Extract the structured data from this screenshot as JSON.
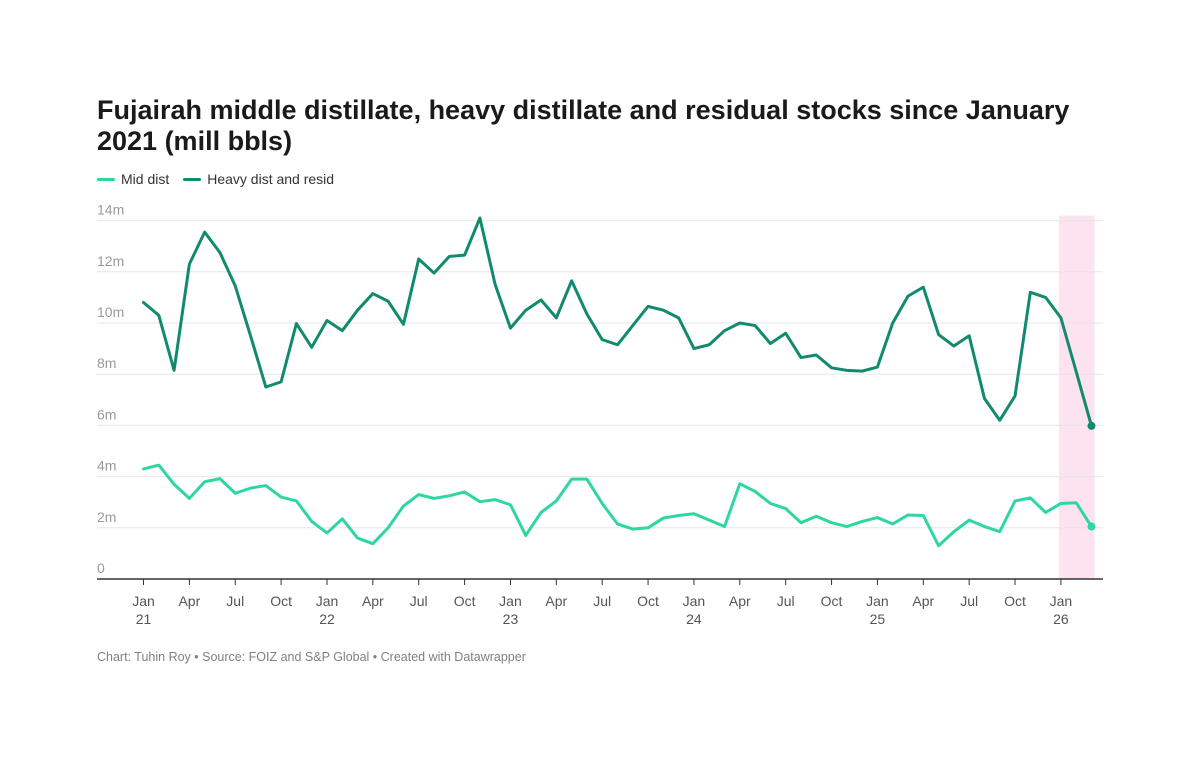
{
  "chart_data": {
    "type": "line",
    "title": "Fujairah middle distillate, heavy distillate and residual stocks since January 2021 (mill bbls)",
    "ylim": [
      0,
      14
    ],
    "y_ticks": [
      {
        "value": 0,
        "label": "0"
      },
      {
        "value": 2,
        "label": "2m"
      },
      {
        "value": 4,
        "label": "4m"
      },
      {
        "value": 6,
        "label": "6m"
      },
      {
        "value": 8,
        "label": "8m"
      },
      {
        "value": 10,
        "label": "10m"
      },
      {
        "value": 12,
        "label": "12m"
      },
      {
        "value": 14,
        "label": "14m"
      }
    ],
    "x_start": "2021-01",
    "x_ticks": [
      {
        "index": 0,
        "label": "Jan",
        "sub": "21"
      },
      {
        "index": 3,
        "label": "Apr",
        "sub": ""
      },
      {
        "index": 6,
        "label": "Jul",
        "sub": ""
      },
      {
        "index": 9,
        "label": "Oct",
        "sub": ""
      },
      {
        "index": 12,
        "label": "Jan",
        "sub": "22"
      },
      {
        "index": 15,
        "label": "Apr",
        "sub": ""
      },
      {
        "index": 18,
        "label": "Jul",
        "sub": ""
      },
      {
        "index": 21,
        "label": "Oct",
        "sub": ""
      },
      {
        "index": 24,
        "label": "Jan",
        "sub": "23"
      },
      {
        "index": 27,
        "label": "Apr",
        "sub": ""
      },
      {
        "index": 30,
        "label": "Jul",
        "sub": ""
      },
      {
        "index": 33,
        "label": "Oct",
        "sub": ""
      },
      {
        "index": 36,
        "label": "Jan",
        "sub": "24"
      },
      {
        "index": 39,
        "label": "Apr",
        "sub": ""
      },
      {
        "index": 42,
        "label": "Jul",
        "sub": ""
      },
      {
        "index": 45,
        "label": "Oct",
        "sub": ""
      },
      {
        "index": 48,
        "label": "Jan",
        "sub": "25"
      },
      {
        "index": 51,
        "label": "Apr",
        "sub": ""
      },
      {
        "index": 54,
        "label": "Jul",
        "sub": ""
      },
      {
        "index": 57,
        "label": "Oct",
        "sub": ""
      },
      {
        "index": 60,
        "label": "Jan",
        "sub": "26"
      }
    ],
    "highlight_from_index": 60,
    "series": [
      {
        "name": "Mid dist",
        "color": "#2ed6a1",
        "values": [
          4.3,
          4.45,
          3.7,
          3.15,
          3.8,
          3.92,
          3.35,
          3.55,
          3.65,
          3.2,
          3.05,
          2.25,
          1.8,
          2.35,
          1.6,
          1.38,
          2.0,
          2.85,
          3.3,
          3.15,
          3.25,
          3.4,
          3.02,
          3.1,
          2.9,
          1.7,
          2.6,
          3.05,
          3.9,
          3.9,
          2.95,
          2.15,
          1.95,
          2.0,
          2.38,
          2.48,
          2.55,
          2.3,
          2.05,
          3.72,
          3.42,
          2.95,
          2.75,
          2.2,
          2.45,
          2.2,
          2.05,
          2.25,
          2.4,
          2.15,
          2.5,
          2.48,
          1.3,
          1.85,
          2.3,
          2.05,
          1.85,
          3.05,
          3.17,
          2.6,
          2.95,
          2.98,
          2.05
        ]
      },
      {
        "name": "Heavy dist and resid",
        "color": "#128a6e",
        "values": [
          10.8,
          10.3,
          8.15,
          12.3,
          13.55,
          12.75,
          11.45,
          9.5,
          7.5,
          7.7,
          9.98,
          9.05,
          10.1,
          9.7,
          10.5,
          11.15,
          10.85,
          9.95,
          12.5,
          11.95,
          12.6,
          12.65,
          14.1,
          11.5,
          9.8,
          10.5,
          10.9,
          10.2,
          11.65,
          10.35,
          9.35,
          9.15,
          9.9,
          10.65,
          10.5,
          10.2,
          9.0,
          9.15,
          9.7,
          10.0,
          9.9,
          9.2,
          9.6,
          8.65,
          8.75,
          8.25,
          8.15,
          8.12,
          8.28,
          10.0,
          11.05,
          11.4,
          9.55,
          9.1,
          9.5,
          7.05,
          6.2,
          7.15,
          11.2,
          11.0,
          10.2,
          8.1,
          5.98
        ]
      }
    ]
  },
  "legend": {
    "item1": "Mid dist",
    "item2": "Heavy dist and resid"
  },
  "footer": "Chart: Tuhin Roy • Source: FOIZ and S&P Global • Created with Datawrapper",
  "colors": {
    "mid": "#2ed6a1",
    "heavy": "#128a6e",
    "highlight": "#fde2ef",
    "grid": "#e6e6e6",
    "axis": "#333333"
  }
}
